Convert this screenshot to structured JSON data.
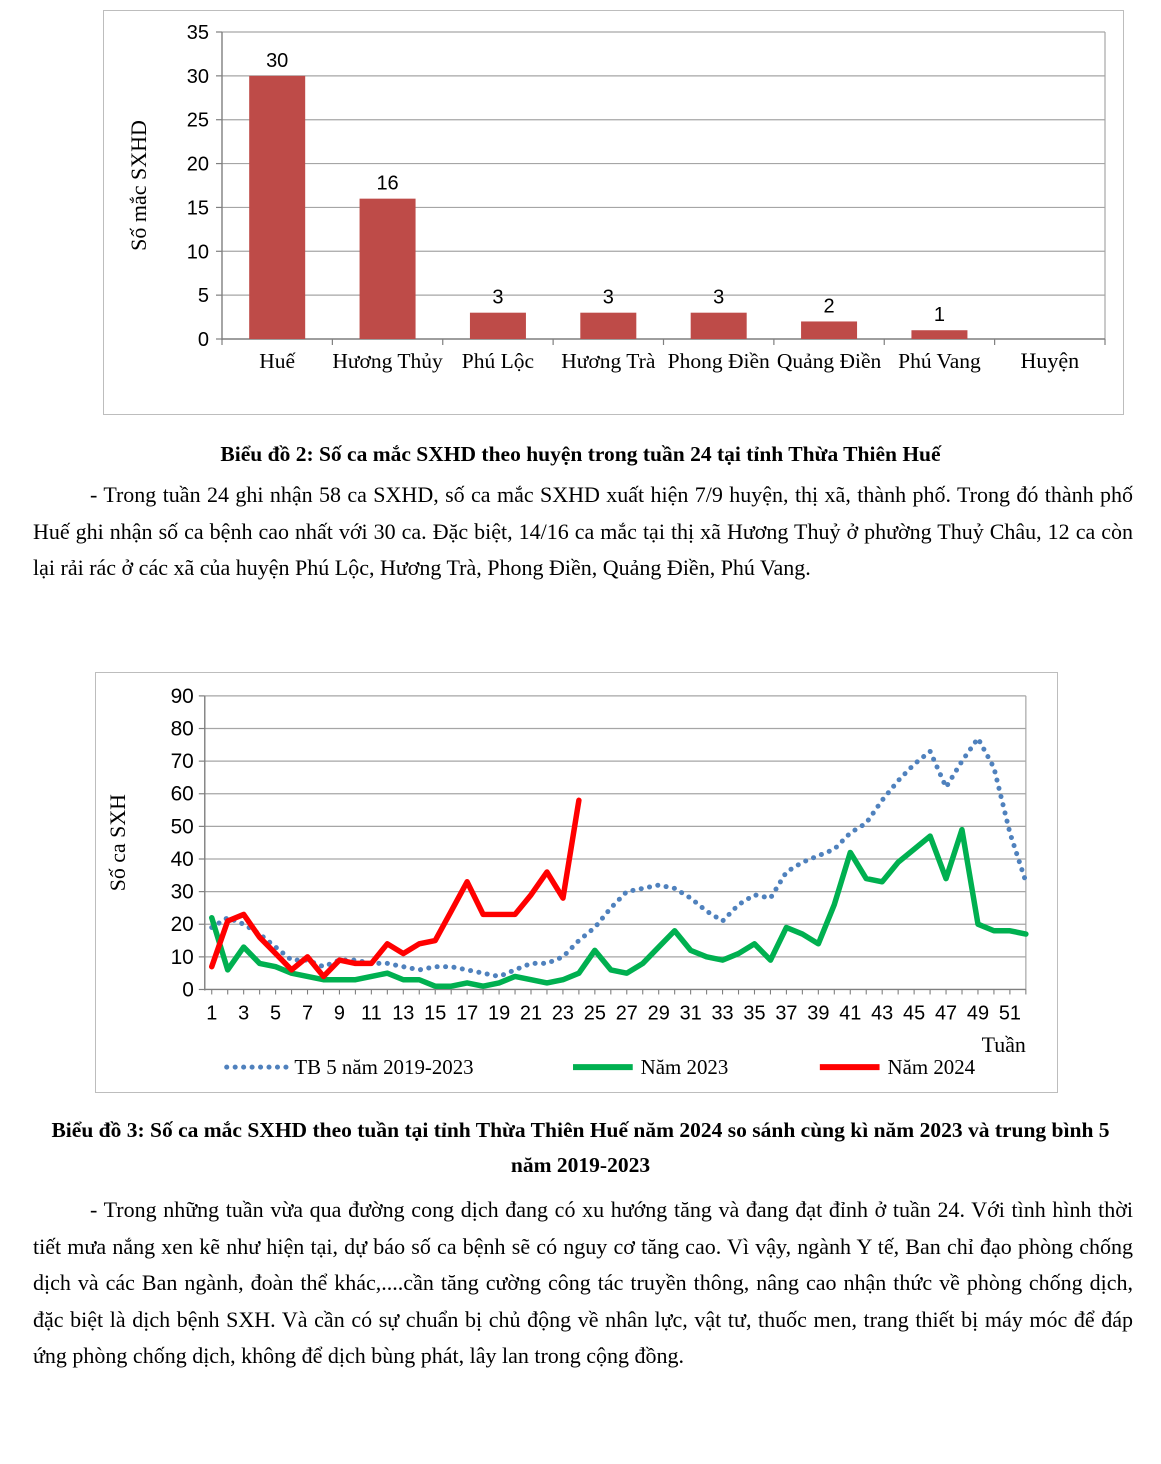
{
  "document": {
    "background": "#ffffff",
    "text_color": "#000000"
  },
  "captions": {
    "chart2": "Biểu đồ 2: Số ca mắc SXHD theo huyện trong tuần 24 tại tỉnh Thừa Thiên Huế",
    "chart3": "Biểu đồ 3: Số ca mắc SXHD theo tuần tại tỉnh Thừa Thiên Huế năm 2024 so sánh cùng kì năm 2023 và trung bình 5 năm 2019-2023"
  },
  "paragraphs": {
    "p1": "- Trong tuần 24 ghi nhận 58 ca SXHD, số ca mắc SXHD xuất hiện 7/9 huyện, thị xã, thành phố. Trong đó thành phố Huế ghi nhận số ca bệnh cao nhất với 30 ca. Đặc biệt, 14/16 ca mắc tại thị xã Hương Thuỷ ở phường Thuỷ Châu, 12 ca còn lại rải rác ở các xã của huyện Phú Lộc, Hương Trà, Phong Điền, Quảng Điền, Phú Vang.",
    "p2": "- Trong những tuần vừa qua đường cong dịch đang có xu hướng tăng và đang đạt đỉnh ở tuần 24. Với tình hình thời tiết mưa nắng xen kẽ như hiện tại, dự báo số ca bệnh sẽ có nguy cơ tăng cao. Vì vậy, ngành Y tế, Ban chỉ đạo phòng chống dịch và các Ban ngành, đoàn thể khác,....cần tăng cường công tác truyền thông, nâng cao nhận thức về phòng chống dịch, đặc biệt là dịch bệnh SXH. Và cần có sự chuẩn bị chủ động về nhân lực, vật tư, thuốc men, trang thiết bị máy móc để đáp ứng phòng chống dịch, không để dịch bùng phát, lây lan trong cộng đồng."
  },
  "chart_data": [
    {
      "type": "bar",
      "title": "",
      "categories": [
        "Huế",
        "Hương Thủy",
        "Phú Lộc",
        "Hương Trà",
        "Phong Điền",
        "Quảng Điền",
        "Phú Vang"
      ],
      "values": [
        30,
        16,
        3,
        3,
        3,
        2,
        1
      ],
      "value_labels": [
        "30",
        "16",
        "3",
        "3",
        "3",
        "2",
        "1"
      ],
      "xlabel": "Huyện",
      "ylabel": "Số mắc SXHD",
      "ylim": [
        0,
        35
      ],
      "ytick_step": 5,
      "grid": true,
      "legend_position": "none",
      "colors": {
        "bar": "#be4b48",
        "grid": "#a6a6a6",
        "axis": "#7f7f7f",
        "text": "#000000"
      }
    },
    {
      "type": "line",
      "title": "",
      "xlabel": "Tuần",
      "ylabel": "Số ca SXH",
      "ylim": [
        0,
        90
      ],
      "ytick_step": 10,
      "grid": true,
      "legend_position": "bottom",
      "x_weeks": [
        1,
        2,
        3,
        4,
        5,
        6,
        7,
        8,
        9,
        10,
        11,
        12,
        13,
        14,
        15,
        16,
        17,
        18,
        19,
        20,
        21,
        22,
        23,
        24,
        25,
        26,
        27,
        28,
        29,
        30,
        31,
        32,
        33,
        34,
        35,
        36,
        37,
        38,
        39,
        40,
        41,
        42,
        43,
        44,
        45,
        46,
        47,
        48,
        49,
        50,
        51,
        52
      ],
      "xtick_labels": [
        1,
        3,
        5,
        7,
        9,
        11,
        13,
        15,
        17,
        19,
        21,
        23,
        25,
        27,
        29,
        31,
        33,
        35,
        37,
        39,
        41,
        43,
        45,
        47,
        49,
        51
      ],
      "series": [
        {
          "name": "TB 5 năm 2019-2023",
          "style": "dotted",
          "color": "#4f81bd",
          "values": [
            19,
            22,
            20,
            17,
            13,
            9,
            9,
            7,
            9,
            9,
            8,
            8,
            7,
            6,
            7,
            7,
            6,
            5,
            4,
            6,
            8,
            8,
            10,
            15,
            19,
            25,
            30,
            31,
            32,
            31,
            28,
            24,
            21,
            26,
            29,
            28,
            36,
            39,
            41,
            43,
            48,
            51,
            58,
            64,
            69,
            73,
            62,
            70,
            77,
            68,
            48,
            33
          ]
        },
        {
          "name": "Năm 2023",
          "style": "solid",
          "color": "#00b050",
          "values": [
            22,
            6,
            13,
            8,
            7,
            5,
            4,
            3,
            3,
            3,
            4,
            5,
            3,
            3,
            1,
            1,
            2,
            1,
            2,
            4,
            3,
            2,
            3,
            5,
            12,
            6,
            5,
            8,
            13,
            18,
            12,
            10,
            9,
            11,
            14,
            9,
            19,
            17,
            14,
            26,
            42,
            34,
            33,
            39,
            43,
            47,
            34,
            49,
            20,
            18,
            18,
            17
          ]
        },
        {
          "name": "Năm 2024",
          "style": "solid",
          "color": "#ff0000",
          "values": [
            7,
            21,
            23,
            16,
            11,
            6,
            10,
            4,
            9,
            8,
            8,
            14,
            11,
            14,
            15,
            24,
            33,
            23,
            23,
            23,
            29,
            36,
            28,
            58
          ]
        }
      ],
      "colors": {
        "grid": "#a6a6a6",
        "axis": "#7f7f7f",
        "text": "#000000"
      }
    }
  ]
}
